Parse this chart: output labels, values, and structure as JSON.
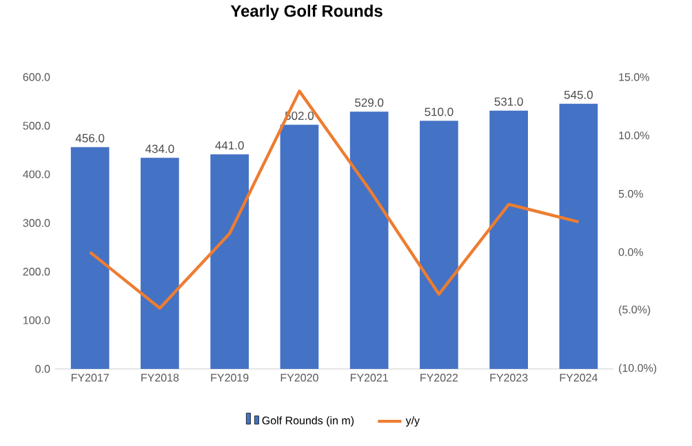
{
  "chart_data": {
    "type": "bar",
    "title": "Yearly Golf Rounds",
    "categories": [
      "FY2017",
      "FY2018",
      "FY2019",
      "FY2020",
      "FY2021",
      "FY2022",
      "FY2023",
      "FY2024"
    ],
    "series": [
      {
        "name": "Golf Rounds (in m)",
        "color": "#4472c4",
        "values": [
          456,
          434,
          441,
          502,
          529,
          510,
          531,
          545
        ],
        "value_labels": [
          "456.0",
          "434.0",
          "441.0",
          "502.0",
          "529.0",
          "510.0",
          "531.0",
          "545.0"
        ]
      },
      {
        "name": "y/y",
        "type": "line",
        "axis": "y2",
        "color": "#ed7d31",
        "values": [
          0,
          -4.8,
          1.6,
          13.8,
          5.4,
          -3.6,
          4.1,
          2.6
        ]
      }
    ],
    "ylim": [
      0,
      600
    ],
    "yticks": [
      {
        "value": 0,
        "label": "0.0"
      },
      {
        "value": 100,
        "label": "100.0"
      },
      {
        "value": 200,
        "label": "200.0"
      },
      {
        "value": 300,
        "label": "300.0"
      },
      {
        "value": 400,
        "label": "400.0"
      },
      {
        "value": 500,
        "label": "500.0"
      },
      {
        "value": 600,
        "label": "600.0"
      }
    ],
    "y2lim": [
      -10,
      15
    ],
    "y2ticks": [
      {
        "value": -10,
        "label": "(10.0%)"
      },
      {
        "value": -5,
        "label": "(5.0%)"
      },
      {
        "value": 0,
        "label": "0.0%"
      },
      {
        "value": 5,
        "label": "5.0%"
      },
      {
        "value": 10,
        "label": "10.0%"
      },
      {
        "value": 15,
        "label": "15.0%"
      }
    ],
    "legend": "bottom",
    "marker": "none",
    "line_style": "solid"
  }
}
